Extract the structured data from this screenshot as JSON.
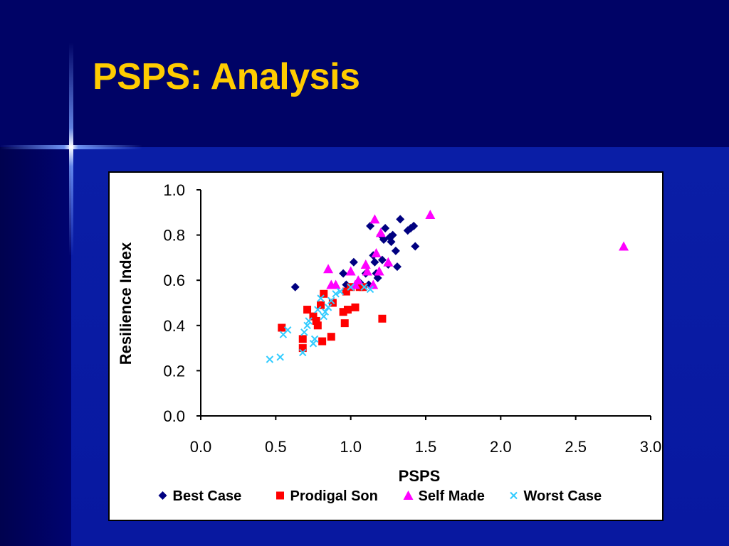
{
  "slide": {
    "title": "PSPS: Analysis"
  },
  "chart_data": {
    "type": "scatter",
    "title": "",
    "xlabel": "PSPS",
    "ylabel": "Resilience Index",
    "xlim": [
      0,
      3
    ],
    "ylim": [
      0,
      1
    ],
    "x_ticks": [
      "0.0",
      "0.5",
      "1.0",
      "1.5",
      "2.0",
      "2.5",
      "3.0"
    ],
    "y_ticks": [
      "0.0",
      "0.2",
      "0.4",
      "0.6",
      "0.8",
      "1.0"
    ],
    "grid": false,
    "legend_position": "bottom",
    "series": [
      {
        "name": "Best Case",
        "marker": "diamond",
        "color": "#000080",
        "points": [
          [
            0.63,
            0.57
          ],
          [
            0.95,
            0.63
          ],
          [
            0.97,
            0.58
          ],
          [
            1.02,
            0.68
          ],
          [
            1.06,
            0.59
          ],
          [
            1.1,
            0.63
          ],
          [
            1.12,
            0.58
          ],
          [
            1.13,
            0.84
          ],
          [
            1.15,
            0.71
          ],
          [
            1.16,
            0.68
          ],
          [
            1.17,
            0.63
          ],
          [
            1.18,
            0.61
          ],
          [
            1.2,
            0.8
          ],
          [
            1.21,
            0.69
          ],
          [
            1.22,
            0.78
          ],
          [
            1.23,
            0.83
          ],
          [
            1.25,
            0.67
          ],
          [
            1.26,
            0.79
          ],
          [
            1.27,
            0.77
          ],
          [
            1.28,
            0.8
          ],
          [
            1.3,
            0.73
          ],
          [
            1.31,
            0.66
          ],
          [
            1.33,
            0.87
          ],
          [
            1.38,
            0.82
          ],
          [
            1.4,
            0.83
          ],
          [
            1.42,
            0.84
          ],
          [
            1.43,
            0.75
          ]
        ]
      },
      {
        "name": "Prodigal Son",
        "marker": "square",
        "color": "#FF0000",
        "points": [
          [
            0.54,
            0.39
          ],
          [
            0.68,
            0.3
          ],
          [
            0.68,
            0.34
          ],
          [
            0.71,
            0.47
          ],
          [
            0.75,
            0.44
          ],
          [
            0.77,
            0.42
          ],
          [
            0.78,
            0.4
          ],
          [
            0.8,
            0.49
          ],
          [
            0.81,
            0.33
          ],
          [
            0.82,
            0.54
          ],
          [
            0.87,
            0.35
          ],
          [
            0.88,
            0.5
          ],
          [
            0.95,
            0.46
          ],
          [
            0.96,
            0.41
          ],
          [
            0.97,
            0.55
          ],
          [
            0.98,
            0.47
          ],
          [
            1.0,
            0.57
          ],
          [
            1.03,
            0.48
          ],
          [
            1.06,
            0.57
          ],
          [
            1.08,
            0.57
          ],
          [
            1.21,
            0.43
          ]
        ]
      },
      {
        "name": "Self Made",
        "marker": "triangle",
        "color": "#FF00FF",
        "points": [
          [
            0.85,
            0.65
          ],
          [
            0.87,
            0.58
          ],
          [
            0.9,
            0.58
          ],
          [
            1.0,
            0.64
          ],
          [
            1.03,
            0.58
          ],
          [
            1.05,
            0.6
          ],
          [
            1.1,
            0.67
          ],
          [
            1.11,
            0.64
          ],
          [
            1.15,
            0.58
          ],
          [
            1.16,
            0.87
          ],
          [
            1.17,
            0.72
          ],
          [
            1.19,
            0.64
          ],
          [
            1.2,
            0.81
          ],
          [
            1.25,
            0.68
          ],
          [
            1.53,
            0.89
          ],
          [
            2.82,
            0.75
          ]
        ]
      },
      {
        "name": "Worst Case",
        "marker": "x",
        "color": "#33CCFF",
        "points": [
          [
            0.46,
            0.25
          ],
          [
            0.53,
            0.26
          ],
          [
            0.55,
            0.36
          ],
          [
            0.58,
            0.38
          ],
          [
            0.68,
            0.28
          ],
          [
            0.69,
            0.37
          ],
          [
            0.71,
            0.4
          ],
          [
            0.72,
            0.42
          ],
          [
            0.75,
            0.32
          ],
          [
            0.76,
            0.34
          ],
          [
            0.78,
            0.47
          ],
          [
            0.8,
            0.52
          ],
          [
            0.82,
            0.44
          ],
          [
            0.83,
            0.46
          ],
          [
            0.85,
            0.48
          ],
          [
            0.87,
            0.51
          ],
          [
            0.9,
            0.54
          ],
          [
            0.93,
            0.55
          ],
          [
            1.0,
            0.57
          ],
          [
            1.09,
            0.57
          ],
          [
            1.13,
            0.56
          ]
        ]
      }
    ]
  }
}
